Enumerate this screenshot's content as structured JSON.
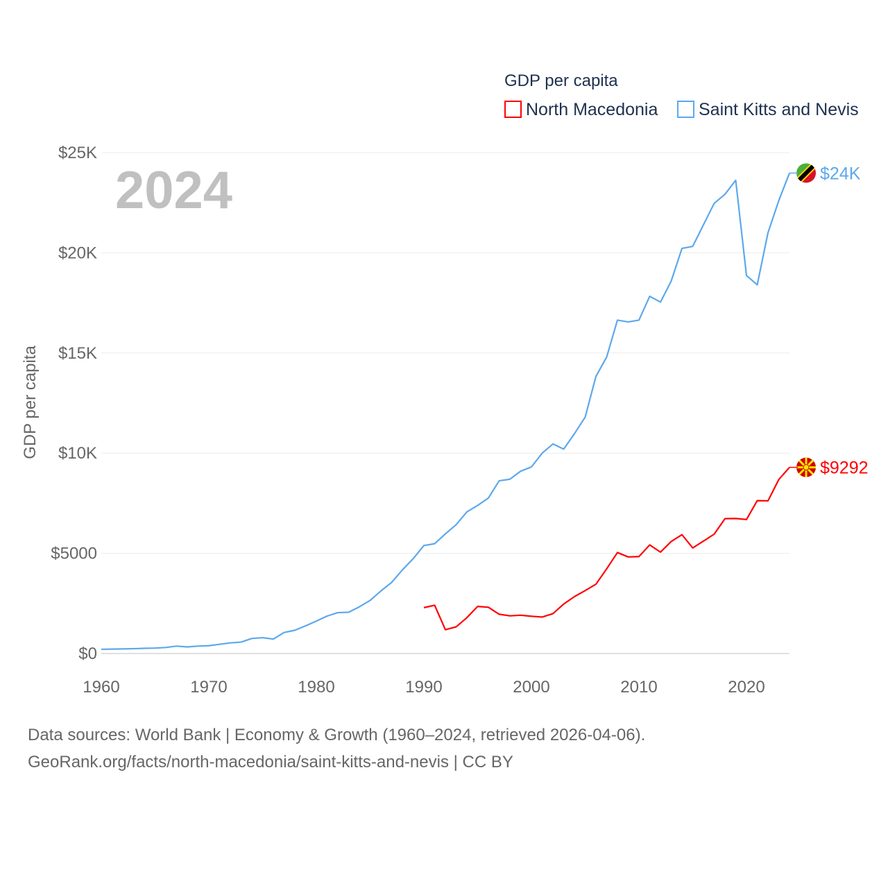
{
  "chart_data": {
    "type": "line",
    "year_label": "2024",
    "ylabel": "GDP per capita",
    "legend_title": "GDP per capita",
    "legend_placement": "top-right",
    "grid": true,
    "xlim": [
      1960,
      2024
    ],
    "ylim": [
      0,
      25000
    ],
    "x_ticks": [
      1960,
      1970,
      1980,
      1990,
      2000,
      2010,
      2020
    ],
    "x_tick_labels": [
      "1960",
      "1970",
      "1980",
      "1990",
      "2000",
      "2010",
      "2020"
    ],
    "y_ticks": [
      0,
      5000,
      10000,
      15000,
      20000,
      25000
    ],
    "y_tick_labels": [
      "$0",
      "$5000",
      "$10K",
      "$15K",
      "$20K",
      "$25K"
    ],
    "series": [
      {
        "name": "North Macedonia",
        "color": "#ff0000",
        "end_label": "$9292",
        "start_year": 1990,
        "values": [
          2290,
          2410,
          1190,
          1330,
          1790,
          2350,
          2310,
          1960,
          1880,
          1910,
          1860,
          1820,
          1990,
          2470,
          2840,
          3140,
          3460,
          4230,
          5040,
          4820,
          4840,
          5420,
          5060,
          5590,
          5930,
          5270,
          5610,
          5960,
          6730,
          6740,
          6690,
          7630,
          7620,
          8680,
          9292
        ]
      },
      {
        "name": "Saint Kitts and Nevis",
        "color": "#5ca8ec",
        "end_label": "$24K",
        "start_year": 1960,
        "values": [
          210,
          220,
          230,
          240,
          260,
          270,
          300,
          370,
          330,
          370,
          390,
          460,
          530,
          570,
          750,
          790,
          720,
          1050,
          1160,
          1380,
          1620,
          1870,
          2040,
          2060,
          2330,
          2650,
          3120,
          3550,
          4170,
          4730,
          5390,
          5480,
          5970,
          6430,
          7070,
          7390,
          7760,
          8620,
          8700,
          9100,
          9310,
          10000,
          10460,
          10200,
          10970,
          11800,
          13830,
          14800,
          16640,
          16550,
          16640,
          17830,
          17540,
          18590,
          20220,
          20320,
          21400,
          22470,
          22920,
          23620,
          18870,
          18400,
          21000,
          22600,
          23980
        ]
      }
    ]
  },
  "footer": {
    "line1": "Data sources: World Bank | Economy & Growth (1960–2024, retrieved 2026-04-06).",
    "line2": "GeoRank.org/facts/north-macedonia/saint-kitts-and-nevis | CC BY"
  }
}
